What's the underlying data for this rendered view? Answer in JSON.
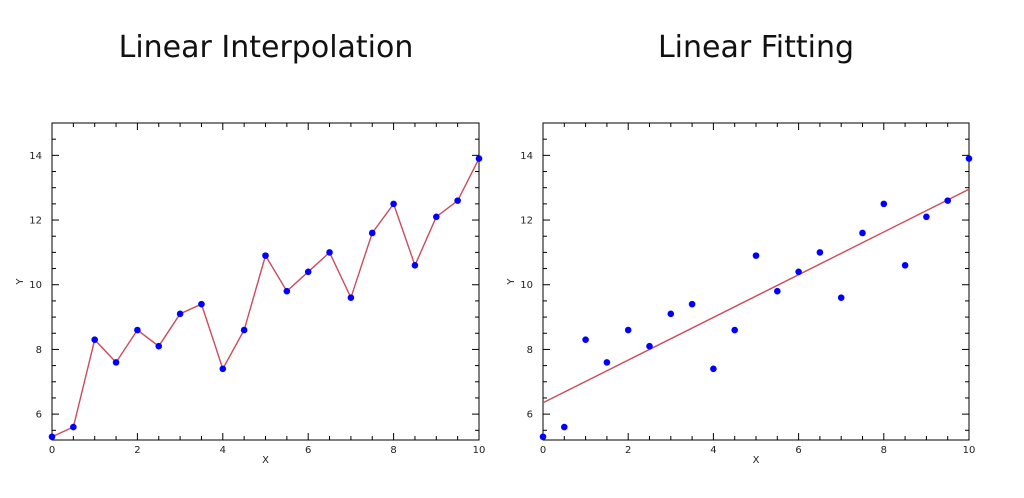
{
  "charts": [
    {
      "title": "Linear Interpolation",
      "chart_data": {
        "type": "line",
        "title": "Linear Interpolation",
        "xlabel": "X",
        "ylabel": "Y",
        "xlim": [
          0,
          10
        ],
        "ylim": [
          5.2,
          15
        ],
        "xticks": [
          0,
          2,
          4,
          6,
          8,
          10
        ],
        "yticks": [
          6,
          8,
          10,
          12,
          14
        ],
        "grid": false,
        "x": [
          0,
          0.5,
          1,
          1.5,
          2,
          2.5,
          3,
          3.5,
          4,
          4.5,
          5,
          5.5,
          6,
          6.5,
          7,
          7.5,
          8,
          8.5,
          9,
          9.5,
          10
        ],
        "y": [
          5.3,
          5.6,
          8.3,
          7.6,
          8.6,
          8.1,
          9.1,
          9.4,
          7.4,
          8.6,
          10.9,
          9.8,
          10.4,
          11.0,
          9.6,
          11.6,
          12.5,
          10.6,
          12.1,
          12.6,
          13.9
        ],
        "line_color": "#cc4c5c",
        "point_color": "#0000ff",
        "line": "interpolation"
      }
    },
    {
      "title": "Linear Fitting",
      "chart_data": {
        "type": "scatter",
        "title": "Linear Fitting",
        "xlabel": "X",
        "ylabel": "Y",
        "xlim": [
          0,
          10
        ],
        "ylim": [
          5.2,
          15
        ],
        "xticks": [
          0,
          2,
          4,
          6,
          8,
          10
        ],
        "yticks": [
          6,
          8,
          10,
          12,
          14
        ],
        "grid": false,
        "x": [
          0,
          0.5,
          1,
          1.5,
          2,
          2.5,
          3,
          3.5,
          4,
          4.5,
          5,
          5.5,
          6,
          6.5,
          7,
          7.5,
          8,
          8.5,
          9,
          9.5,
          10
        ],
        "y": [
          5.3,
          5.6,
          8.3,
          7.6,
          8.6,
          8.1,
          9.1,
          9.4,
          7.4,
          8.6,
          10.9,
          9.8,
          10.4,
          11.0,
          9.6,
          11.6,
          12.5,
          10.6,
          12.1,
          12.6,
          13.9
        ],
        "fit_line": {
          "x": [
            0,
            10
          ],
          "y": [
            6.35,
            12.95
          ]
        },
        "line_color": "#cc4c5c",
        "point_color": "#0000ff",
        "line": "fit"
      }
    }
  ]
}
